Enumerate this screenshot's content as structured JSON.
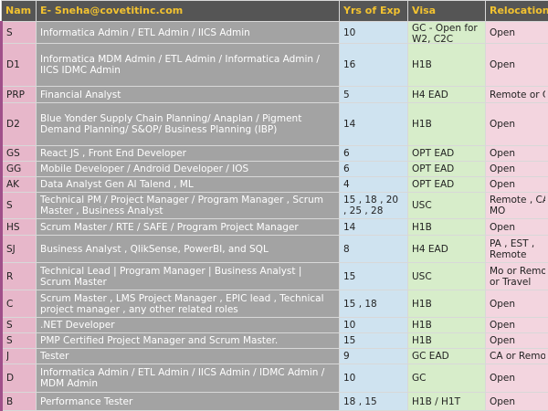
{
  "table": {
    "header": [
      "Nam",
      "E- Sneha@covetitinc.com",
      "Yrs of Exp",
      "Visa",
      "Relocation"
    ],
    "rows": [
      [
        "S",
        "Informatica Admin / ETL Admin / IICS Admin",
        "10",
        "GC - Open for W2, C2C",
        "Open"
      ],
      [
        "D1",
        "Informatica MDM Admin / ETL Admin / Informatica Admin / IICS IDMC Admin",
        "16",
        "H1B",
        "Open"
      ],
      [
        "PRP",
        "Financial Analyst",
        "5",
        "H4 EAD",
        "Remote or C"
      ],
      [
        "D2",
        "Blue Yonder Supply Chain Planning/ Anaplan / Pigment Demand Planning/ S&OP/ Business Planning (IBP)",
        "14",
        "H1B",
        "Open"
      ],
      [
        "GS",
        "React JS , Front End Developer",
        "6",
        "OPT EAD",
        "Open"
      ],
      [
        "GG",
        "Mobile Developer / Android Developer / IOS",
        "6",
        "OPT EAD",
        "Open"
      ],
      [
        "AK",
        "Data Analyst Gen AI Talend , ML",
        "4",
        "OPT EAD",
        "Open"
      ],
      [
        "S",
        "Technical PM / Project Manager / Program Manager , Scrum Master , Business Analyst",
        "15 , 18 , 20 , 25 , 28",
        "USC",
        "Remote , CA\nMO"
      ],
      [
        "HS",
        "Scrum Master / RTE / SAFE / Program Project Manager",
        "14",
        "H1B",
        "Open"
      ],
      [
        "SJ",
        "Business Analyst , QlikSense, PowerBI, and SQL",
        "8",
        "H4 EAD",
        "PA , EST ,\nRemote"
      ],
      [
        "R",
        "Technical Lead | Program Manager | Business Analyst | Scrum Master",
        "15",
        "USC",
        "Mo or Remot\nor Travel"
      ],
      [
        "C",
        "Scrum Master , LMS Project Manager , EPIC lead , Technical project manager , any other related roles",
        "15 , 18",
        "H1B",
        "Open"
      ],
      [
        "S",
        ".NET Developer",
        "10",
        "H1B",
        "Open"
      ],
      [
        "S",
        "PMP Certified Project Manager and Scrum Master.",
        "15",
        "H1B",
        "Open"
      ],
      [
        "J",
        "Tester",
        "9",
        "GC EAD",
        "CA or Remot"
      ],
      [
        "D",
        "Informatica Admin / ETL Admin / IICS Admin / IDMC Admin / MDM Admin",
        "10",
        "GC",
        "Open"
      ],
      [
        "B",
        "Performance Tester",
        "18 , 15",
        "H1B / H1T",
        "Open"
      ]
    ]
  }
}
